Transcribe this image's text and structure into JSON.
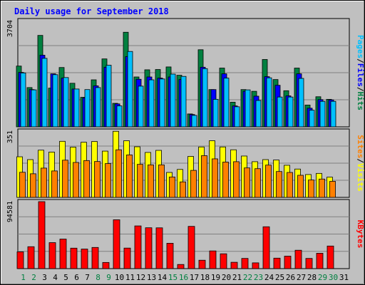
{
  "chart_data": {
    "type": "bar",
    "title": "Daily usage for September 2018",
    "days": [
      "1",
      "2",
      "3",
      "4",
      "5",
      "6",
      "7",
      "8",
      "9",
      "10",
      "11",
      "12",
      "13",
      "14",
      "15",
      "16",
      "17",
      "18",
      "19",
      "20",
      "21",
      "22",
      "23",
      "24",
      "25",
      "26",
      "27",
      "28",
      "29",
      "30",
      "31"
    ],
    "weekend_days": [
      1,
      2,
      8,
      9,
      15,
      16,
      22,
      23,
      29,
      30
    ],
    "no_data_days": [
      31
    ],
    "panels": [
      {
        "name": "hits-files-pages",
        "ymax": 3704,
        "ymax_label": "3704",
        "legend": [
          {
            "text": "Pages",
            "color": "#00c0ff"
          },
          {
            "text": "/",
            "color": "#000000"
          },
          {
            "text": "Files",
            "color": "#0000ff"
          },
          {
            "text": "/",
            "color": "#000000"
          },
          {
            "text": "Hits",
            "color": "#008040"
          }
        ],
        "series": [
          {
            "name": "Hits",
            "color": "#008040",
            "values": [
              2120,
              1370,
              3190,
              1350,
              2070,
              1520,
              1030,
              1640,
              2370,
              820,
              3300,
              1740,
              1990,
              2000,
              2090,
              1800,
              450,
              2690,
              1300,
              2050,
              860,
              1300,
              1240,
              2350,
              1650,
              1260,
              2050,
              760,
              1050,
              960,
              0
            ]
          },
          {
            "name": "Files",
            "color": "#0000ff",
            "values": [
              1900,
              1300,
              2500,
              1850,
              1700,
              1320,
              1010,
              1430,
              2080,
              800,
              2450,
              1660,
              1740,
              1700,
              1740,
              1650,
              430,
              2080,
              1300,
              1850,
              730,
              1240,
              1070,
              1750,
              1450,
              1080,
              1850,
              650,
              950,
              940,
              0
            ]
          },
          {
            "name": "Pages",
            "color": "#00c0ff",
            "values": [
              1880,
              1290,
              2390,
              1820,
              1720,
              1320,
              1300,
              1370,
              2150,
              730,
              2630,
              1420,
              1640,
              1670,
              1840,
              1760,
              400,
              2030,
              960,
              1700,
              700,
              1290,
              920,
              1710,
              1040,
              1040,
              1690,
              580,
              890,
              890,
              0
            ]
          }
        ]
      },
      {
        "name": "visits-sites",
        "ymax": 351,
        "ymax_label": "351",
        "legend": [
          {
            "text": "Sites",
            "color": "#ff8000"
          },
          {
            "text": "/",
            "color": "#000000"
          },
          {
            "text": "Visits",
            "color": "#ffff00"
          }
        ],
        "series": [
          {
            "name": "Visits",
            "color": "#ffff00",
            "values": [
              215,
              200,
              250,
              240,
              297,
              266,
              292,
              296,
              245,
              350,
              300,
              268,
              238,
              249,
              132,
              148,
              217,
              267,
              300,
              267,
              252,
              219,
              189,
              200,
              198,
              170,
              150,
              121,
              127,
              107,
              0
            ]
          },
          {
            "name": "Sites",
            "color": "#ff8000",
            "values": [
              133,
              125,
              155,
              140,
              197,
              185,
              195,
              190,
              179,
              252,
              225,
              175,
              172,
              172,
              108,
              82,
              143,
              221,
              204,
              187,
              189,
              156,
              152,
              171,
              137,
              132,
              117,
              92,
              97,
              85,
              0
            ]
          }
        ]
      },
      {
        "name": "kbytes",
        "ymax": 94581,
        "ymax_label": "94581",
        "legend": [
          {
            "text": "KBytes",
            "color": "#ff0000"
          }
        ],
        "series": [
          {
            "name": "KBytes",
            "color": "#ff0000",
            "values": [
              23700,
              30950,
              94581,
              36700,
              41700,
              28900,
              27600,
              29900,
              8700,
              69000,
              29000,
              60300,
              57700,
              57600,
              35800,
              5850,
              59650,
              11850,
              25000,
              20950,
              8950,
              14400,
              8150,
              59100,
              14800,
              17600,
              25950,
              14400,
              21700,
              31900,
              0
            ]
          }
        ]
      }
    ]
  }
}
